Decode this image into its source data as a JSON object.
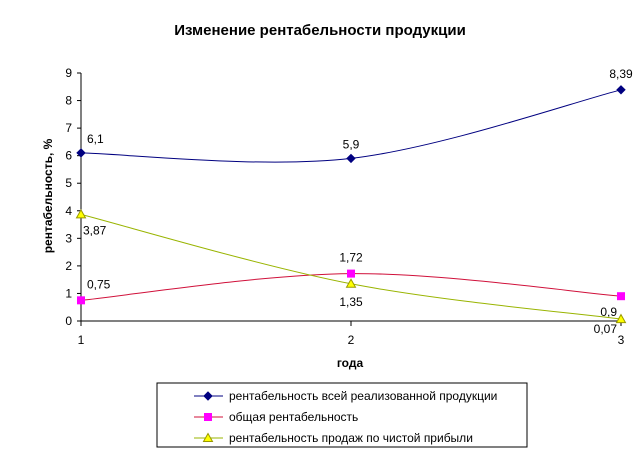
{
  "chart_data": {
    "type": "line",
    "title": "Изменение рентабельности продукции",
    "xlabel": "года",
    "ylabel": "рентабельность, %",
    "x": [
      1,
      2,
      3
    ],
    "x_tick_labels": [
      "1",
      "2",
      "3"
    ],
    "ylim": [
      0,
      9
    ],
    "y_ticks": [
      0,
      1,
      2,
      3,
      4,
      5,
      6,
      7,
      8,
      9
    ],
    "grid": false,
    "legend_placement": "bottom",
    "series": [
      {
        "name": "рентабельность всей реализованной продукции",
        "values": [
          6.1,
          5.9,
          8.39
        ],
        "labels": [
          "6,1",
          "5,9",
          "8,39"
        ],
        "color": "#000080",
        "marker": "diamond"
      },
      {
        "name": "общая рентабельность",
        "values": [
          0.75,
          1.72,
          0.9
        ],
        "labels": [
          "0,75",
          "1,72",
          "0,9"
        ],
        "color": "#ff00ff",
        "line_color": "#d0103a",
        "marker": "square"
      },
      {
        "name": "рентабельность продаж по чистой прибыли",
        "values": [
          3.87,
          1.35,
          0.07
        ],
        "labels": [
          "3,87",
          "1,35",
          "0,07"
        ],
        "color": "#ffff00",
        "line_color": "#99b400",
        "marker": "triangle"
      }
    ]
  }
}
